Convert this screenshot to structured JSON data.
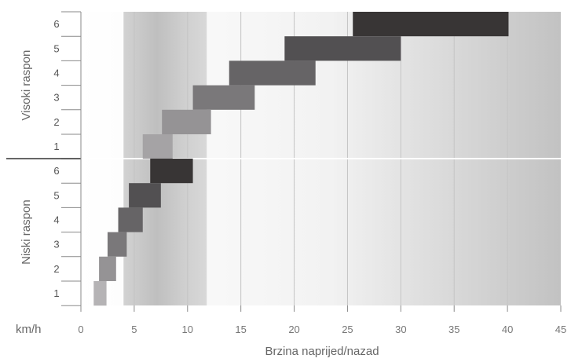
{
  "chart_data": {
    "type": "bar",
    "orientation": "horizontal-range",
    "xlabel": "Brzina naprijed/nazad",
    "x_unit": "km/h",
    "xlim": [
      0,
      45
    ],
    "x_ticks": [
      0,
      5,
      10,
      15,
      20,
      25,
      30,
      35,
      40,
      45
    ],
    "grid": "vertical",
    "shaded_band_x": [
      4,
      11.8
    ],
    "groups": [
      {
        "name": "Visoki raspon",
        "gears": [
          {
            "gear": "6",
            "start": 25.5,
            "end": 40.1,
            "color": "#383535"
          },
          {
            "gear": "5",
            "start": 19.1,
            "end": 30.0,
            "color": "#525052"
          },
          {
            "gear": "4",
            "start": 13.9,
            "end": 22.0,
            "color": "#666466"
          },
          {
            "gear": "3",
            "start": 10.5,
            "end": 16.3,
            "color": "#7a787a"
          },
          {
            "gear": "2",
            "start": 7.6,
            "end": 12.2,
            "color": "#959395"
          },
          {
            "gear": "1",
            "start": 5.8,
            "end": 8.6,
            "color": "#a5a3a5"
          }
        ]
      },
      {
        "name": "Niski raspon",
        "gears": [
          {
            "gear": "6",
            "start": 6.5,
            "end": 10.5,
            "color": "#383535"
          },
          {
            "gear": "5",
            "start": 4.5,
            "end": 7.5,
            "color": "#525052"
          },
          {
            "gear": "4",
            "start": 3.5,
            "end": 5.8,
            "color": "#666466"
          },
          {
            "gear": "3",
            "start": 2.5,
            "end": 4.3,
            "color": "#7a787a"
          },
          {
            "gear": "2",
            "start": 1.7,
            "end": 3.3,
            "color": "#959395"
          },
          {
            "gear": "1",
            "start": 1.2,
            "end": 2.4,
            "color": "#b5b3b5"
          }
        ]
      }
    ]
  }
}
